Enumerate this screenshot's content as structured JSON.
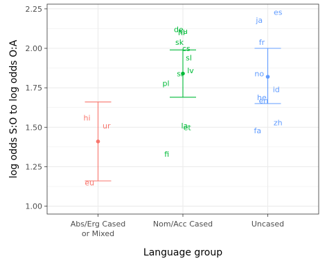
{
  "chart_data": {
    "type": "scatter",
    "xlabel": "Language group",
    "ylabel": "log odds S:O to log odds O:A",
    "categories": [
      "Abs/Erg Cased\nor Mixed",
      "Nom/Acc Cased",
      "Uncased"
    ],
    "ylim": [
      0.95,
      2.28
    ],
    "yticks": [
      1.0,
      1.25,
      1.5,
      1.75,
      2.0,
      2.25
    ],
    "ytick_labels": [
      "1.00",
      "1.25",
      "1.50",
      "1.75",
      "2.00",
      "2.25"
    ],
    "grid": true,
    "legend": "none",
    "series": [
      {
        "name": "Abs/Erg Cased or Mixed",
        "color": "#F8766D",
        "mean": 1.41,
        "ci": [
          1.16,
          1.66
        ],
        "points": [
          {
            "label": "hi",
            "x": 0.87,
            "y": 1.56
          },
          {
            "label": "ur",
            "x": 1.1,
            "y": 1.51
          },
          {
            "label": "eu",
            "x": 0.9,
            "y": 1.15
          }
        ]
      },
      {
        "name": "Nom/Acc Cased",
        "color": "#00BA38",
        "mean": 1.84,
        "ci": [
          1.69,
          1.99
        ],
        "points": [
          {
            "label": "de",
            "x": 1.95,
            "y": 2.12
          },
          {
            "label": "hr",
            "x": 1.99,
            "y": 2.1
          },
          {
            "label": "ru",
            "x": 2.01,
            "y": 2.11
          },
          {
            "label": "sk",
            "x": 1.96,
            "y": 2.04
          },
          {
            "label": "cs",
            "x": 2.04,
            "y": 2.0
          },
          {
            "label": "sl",
            "x": 2.07,
            "y": 1.94
          },
          {
            "label": "sr",
            "x": 1.97,
            "y": 1.84
          },
          {
            "label": "lv",
            "x": 2.09,
            "y": 1.86
          },
          {
            "label": "pl",
            "x": 1.8,
            "y": 1.78
          },
          {
            "label": "la",
            "x": 2.02,
            "y": 1.51
          },
          {
            "label": "et",
            "x": 2.05,
            "y": 1.5
          },
          {
            "label": "fi",
            "x": 1.81,
            "y": 1.33
          }
        ]
      },
      {
        "name": "Uncased",
        "color": "#619CFF",
        "mean": 1.82,
        "ci": [
          1.65,
          2.0
        ],
        "points": [
          {
            "label": "ja",
            "x": 2.9,
            "y": 2.18
          },
          {
            "label": "es",
            "x": 3.12,
            "y": 2.23
          },
          {
            "label": "fr",
            "x": 2.93,
            "y": 2.04
          },
          {
            "label": "no",
            "x": 2.9,
            "y": 1.84
          },
          {
            "label": "id",
            "x": 3.1,
            "y": 1.74
          },
          {
            "label": "he",
            "x": 2.93,
            "y": 1.69
          },
          {
            "label": "en",
            "x": 2.95,
            "y": 1.67
          },
          {
            "label": "zh",
            "x": 3.12,
            "y": 1.53
          },
          {
            "label": "fa",
            "x": 2.88,
            "y": 1.48
          }
        ]
      }
    ]
  }
}
